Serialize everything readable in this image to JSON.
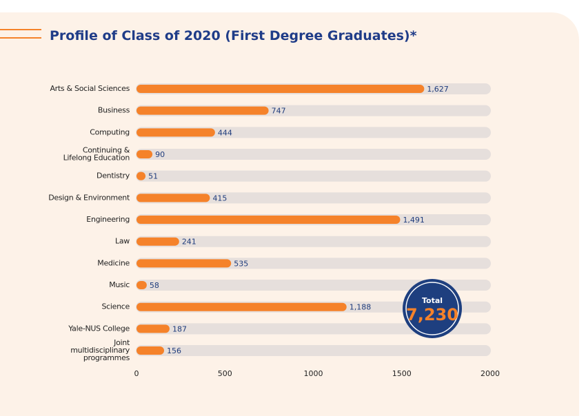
{
  "chart_data": {
    "type": "bar",
    "orientation": "horizontal",
    "title": "Profile of Class of 2020 (First Degree Graduates)*",
    "categories": [
      "Arts & Social Sciences",
      "Business",
      "Computing",
      "Continuing &\nLifelong Education",
      "Dentistry",
      "Design & Environment",
      "Engineering",
      "Law",
      "Medicine",
      "Music",
      "Science",
      "Yale-NUS College",
      "Joint\nmultidisciplinary\nprogrammes"
    ],
    "values": [
      1627,
      747,
      444,
      90,
      51,
      415,
      1491,
      241,
      535,
      58,
      1188,
      187,
      156
    ],
    "value_labels": [
      "1,627",
      "747",
      "444",
      "90",
      "51",
      "415",
      "1,491",
      "241",
      "535",
      "58",
      "1,188",
      "187",
      "156"
    ],
    "color": "#f5822a",
    "xlim": [
      0,
      2000
    ],
    "xticks": [
      0,
      500,
      1000,
      1500,
      2000
    ],
    "grid": false,
    "annotation": {
      "label": "Total",
      "value": 7230,
      "value_label": "7,230"
    }
  }
}
